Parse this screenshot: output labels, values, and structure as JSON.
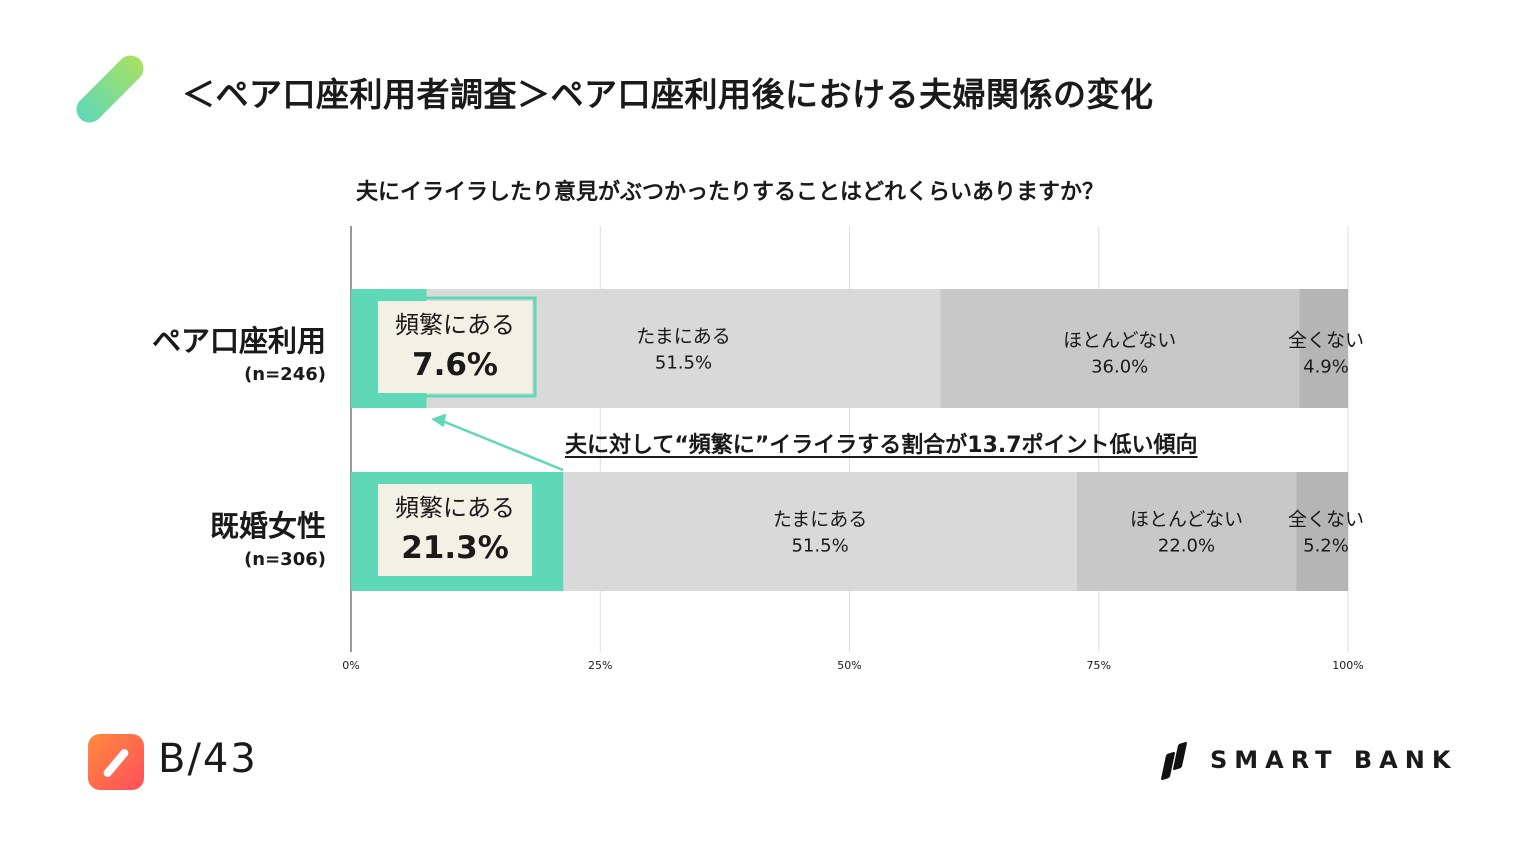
{
  "title": "＜ペア口座利用者調査＞ペア口座利用後における夫婦関係の変化",
  "question": "夫にイライラしたり意見がぶつかったりすることはどれくらいありますか？",
  "rows": [
    {
      "name": "ペア口座利用",
      "n": "(n=246)"
    },
    {
      "name": "既婚女性",
      "n": "(n=306)"
    }
  ],
  "annotation": "夫に対して“頻繁に”イライラする割合が13.7ポイント低い傾向",
  "footer": {
    "page": "B/43",
    "brand": "SMART BANK"
  },
  "colors": {
    "accent": "#5fd8b8",
    "highlight_box": "#f3f0e6",
    "seg2": "#d9d9d9",
    "seg3": "#c8c8c8",
    "seg4": "#b5b5b5"
  },
  "chart_data": {
    "type": "bar",
    "orientation": "horizontal-stacked",
    "categories": [
      "ペア口座利用",
      "既婚女性"
    ],
    "category_n": [
      "(n=246)",
      "(n=306)"
    ],
    "series": [
      {
        "name": "頻繁にある",
        "values": [
          7.6,
          21.3
        ],
        "labels": [
          "7.6%",
          "21.3%"
        ]
      },
      {
        "name": "たまにある",
        "values": [
          51.5,
          51.5
        ],
        "labels": [
          "51.5%",
          "51.5%"
        ]
      },
      {
        "name": "ほとんどない",
        "values": [
          36.0,
          22.0
        ],
        "labels": [
          "36.0%",
          "22.0%"
        ]
      },
      {
        "name": "全くない",
        "values": [
          4.9,
          5.2
        ],
        "labels": [
          "4.9%",
          "5.2%"
        ]
      }
    ],
    "xlim": [
      0,
      100
    ],
    "x_ticks": [
      "0%",
      "25%",
      "50%",
      "75%",
      "100%"
    ],
    "grid": true,
    "legend": "none"
  }
}
